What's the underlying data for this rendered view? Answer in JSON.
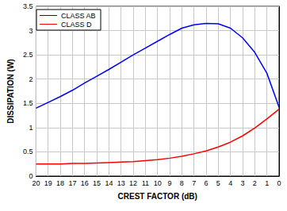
{
  "chart_data": {
    "type": "line",
    "x_label": "CREST FACTOR (dB)",
    "y_label": "DISSIPATION (W)",
    "x": [
      20,
      19,
      18,
      17,
      16,
      15,
      14,
      13,
      12,
      11,
      10,
      9,
      8,
      7,
      6,
      5,
      4,
      3,
      2,
      1,
      0
    ],
    "series": [
      {
        "name": "CLASS AB",
        "color": "#0000ff",
        "values": [
          1.4,
          1.52,
          1.64,
          1.77,
          1.92,
          2.06,
          2.2,
          2.35,
          2.5,
          2.64,
          2.78,
          2.92,
          3.05,
          3.12,
          3.15,
          3.14,
          3.05,
          2.85,
          2.55,
          2.12,
          1.42
        ]
      },
      {
        "name": "CLASS D",
        "color": "#ff0000",
        "values": [
          0.25,
          0.25,
          0.25,
          0.26,
          0.26,
          0.27,
          0.28,
          0.29,
          0.3,
          0.32,
          0.34,
          0.37,
          0.41,
          0.46,
          0.52,
          0.6,
          0.7,
          0.83,
          0.99,
          1.18,
          1.38
        ]
      }
    ],
    "xlim": [
      20,
      0
    ],
    "xticks": [
      20,
      19,
      18,
      17,
      16,
      15,
      14,
      13,
      12,
      11,
      10,
      9,
      8,
      7,
      6,
      5,
      4,
      3,
      2,
      1,
      0
    ],
    "ylim": [
      0,
      3.5
    ],
    "yticks": [
      0,
      0.5,
      1,
      1.5,
      2,
      2.5,
      3,
      3.5
    ],
    "grid": true,
    "legend": "top-left"
  }
}
